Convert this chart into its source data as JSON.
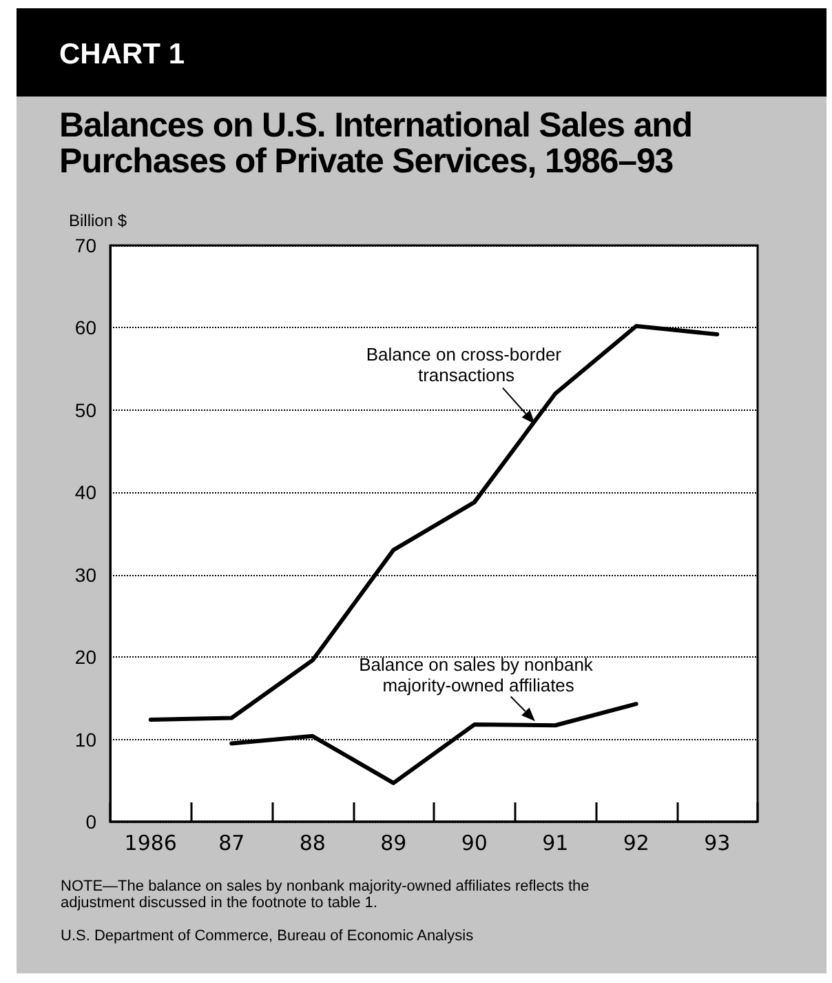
{
  "chart_data": {
    "type": "line",
    "subtitle": "CHART 1",
    "title": "Balances on U.S. International Sales and Purchases of Private Services, 1986–93",
    "ylabel": "Billion $",
    "categories": [
      "1986",
      "87",
      "88",
      "89",
      "90",
      "91",
      "92",
      "93"
    ],
    "series": [
      {
        "name": "Balance on cross-border transactions",
        "color": "#000000",
        "values": [
          12.4,
          12.6,
          19.6,
          33.0,
          38.8,
          52.0,
          60.2,
          59.2
        ]
      },
      {
        "name": "Balance on sales by nonbank majority-owned affiliates",
        "color": "#000000",
        "values": [
          null,
          9.5,
          10.4,
          4.7,
          11.8,
          11.7,
          14.3,
          null
        ]
      }
    ],
    "ylim": [
      0,
      70
    ],
    "yticks": [
      0,
      10,
      20,
      30,
      40,
      50,
      60,
      70
    ],
    "grid": "y",
    "marker": "none",
    "line_style": "solid",
    "annotations": [
      "NOTE—The balance on sales by nonbank majority-owned affiliates reflects the adjustment discussed in the footnote to table 1.",
      "U.S. Department of Commerce, Bureau of Economic Analysis"
    ]
  }
}
